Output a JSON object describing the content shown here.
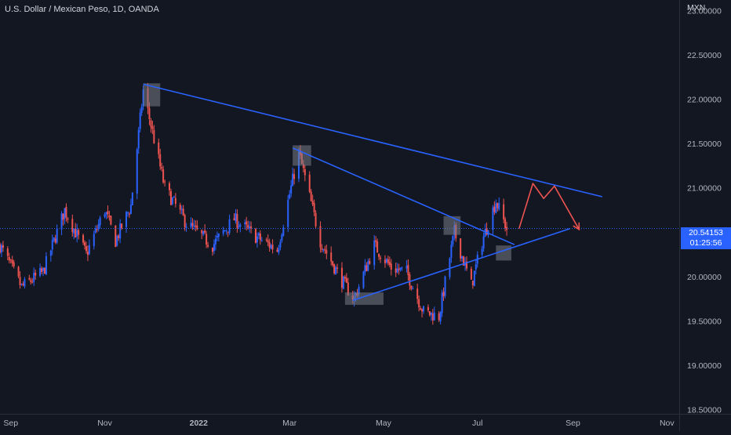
{
  "header": {
    "symbol_title": "U.S. Dollar / Mexican Peso, 1D, OANDA"
  },
  "price_scale": {
    "currency": "MXN",
    "tick_labels": [
      "23.00000",
      "22.50000",
      "22.00000",
      "21.50000",
      "21.00000",
      "20.50000",
      "20.00000",
      "19.50000",
      "19.00000",
      "18.50000"
    ]
  },
  "time_scale": {
    "tick_labels": [
      "Sep",
      "Nov",
      "2022",
      "Mar",
      "May",
      "Jul",
      "Sep",
      "Nov"
    ]
  },
  "last_price": {
    "value": "20.54153",
    "countdown": "01:25:56"
  },
  "colors": {
    "background": "#131722",
    "up_candle": "#2962ff",
    "down_candle": "#ef5350",
    "trendline": "#2962ff",
    "projection": "#ef5350",
    "zone": "#787b86",
    "price_line": "#2962ff"
  },
  "chart_data": {
    "type": "candlestick",
    "title": "U.S. Dollar / Mexican Peso, 1D, OANDA",
    "ylabel": "MXN",
    "ylim": [
      18.45,
      23.12
    ],
    "grid": false,
    "x_axis": {
      "start": "2021-08-25",
      "end": "2022-11-09",
      "ticks": [
        {
          "label": "Sep",
          "date": "2021-09-01"
        },
        {
          "label": "Nov",
          "date": "2021-11-01"
        },
        {
          "label": "2022",
          "date": "2022-01-01"
        },
        {
          "label": "Mar",
          "date": "2022-03-01"
        },
        {
          "label": "May",
          "date": "2022-05-01"
        },
        {
          "label": "Jul",
          "date": "2022-07-01"
        },
        {
          "label": "Sep",
          "date": "2022-09-01"
        },
        {
          "label": "Nov",
          "date": "2022-11-01"
        }
      ]
    },
    "close_path": [
      {
        "date": "2021-08-25",
        "close": 20.35
      },
      {
        "date": "2021-09-08",
        "close": 19.88
      },
      {
        "date": "2021-09-22",
        "close": 20.05
      },
      {
        "date": "2021-10-06",
        "close": 20.75
      },
      {
        "date": "2021-10-20",
        "close": 20.25
      },
      {
        "date": "2021-11-01",
        "close": 20.75
      },
      {
        "date": "2021-11-08",
        "close": 20.4
      },
      {
        "date": "2021-11-18",
        "close": 20.8
      },
      {
        "date": "2021-11-26",
        "close": 22.1
      },
      {
        "date": "2021-12-10",
        "close": 21.0
      },
      {
        "date": "2021-12-24",
        "close": 20.6
      },
      {
        "date": "2022-01-10",
        "close": 20.35
      },
      {
        "date": "2022-01-24",
        "close": 20.65
      },
      {
        "date": "2022-02-07",
        "close": 20.45
      },
      {
        "date": "2022-02-21",
        "close": 20.3
      },
      {
        "date": "2022-03-07",
        "close": 21.4
      },
      {
        "date": "2022-03-21",
        "close": 20.4
      },
      {
        "date": "2022-04-04",
        "close": 19.95
      },
      {
        "date": "2022-04-12",
        "close": 19.75
      },
      {
        "date": "2022-04-25",
        "close": 20.35
      },
      {
        "date": "2022-05-06",
        "close": 20.1
      },
      {
        "date": "2022-05-16",
        "close": 20.05
      },
      {
        "date": "2022-05-27",
        "close": 19.6
      },
      {
        "date": "2022-06-06",
        "close": 19.55
      },
      {
        "date": "2022-06-16",
        "close": 20.5
      },
      {
        "date": "2022-06-27",
        "close": 19.9
      },
      {
        "date": "2022-07-05",
        "close": 20.45
      },
      {
        "date": "2022-07-13",
        "close": 20.85
      },
      {
        "date": "2022-07-20",
        "close": 20.54
      }
    ],
    "annotations": {
      "trendlines": [
        {
          "from": {
            "date": "2021-11-26",
            "price": 22.17
          },
          "to": {
            "date": "2022-09-20",
            "price": 20.9
          }
        },
        {
          "from": {
            "date": "2022-03-03",
            "price": 21.45
          },
          "to": {
            "date": "2022-07-25",
            "price": 20.36
          }
        },
        {
          "from": {
            "date": "2022-04-11",
            "price": 19.73
          },
          "to": {
            "date": "2022-08-30",
            "price": 20.54
          }
        }
      ],
      "zones": [
        {
          "date_start": "2021-11-26",
          "date_end": "2021-12-07",
          "price_high": 22.18,
          "price_low": 21.92
        },
        {
          "date_start": "2022-03-03",
          "date_end": "2022-03-15",
          "price_high": 21.48,
          "price_low": 21.25
        },
        {
          "date_start": "2022-04-06",
          "date_end": "2022-05-01",
          "price_high": 19.82,
          "price_low": 19.68
        },
        {
          "date_start": "2022-06-09",
          "date_end": "2022-06-20",
          "price_high": 20.68,
          "price_low": 20.47
        },
        {
          "date_start": "2022-07-13",
          "date_end": "2022-07-23",
          "price_high": 20.35,
          "price_low": 20.18
        }
      ],
      "projection": [
        {
          "date": "2022-07-28",
          "price": 20.54
        },
        {
          "date": "2022-08-06",
          "price": 21.05
        },
        {
          "date": "2022-08-13",
          "price": 20.88
        },
        {
          "date": "2022-08-20",
          "price": 21.02
        },
        {
          "date": "2022-09-05",
          "price": 20.53
        }
      ],
      "last_price_line": 20.54153
    }
  }
}
